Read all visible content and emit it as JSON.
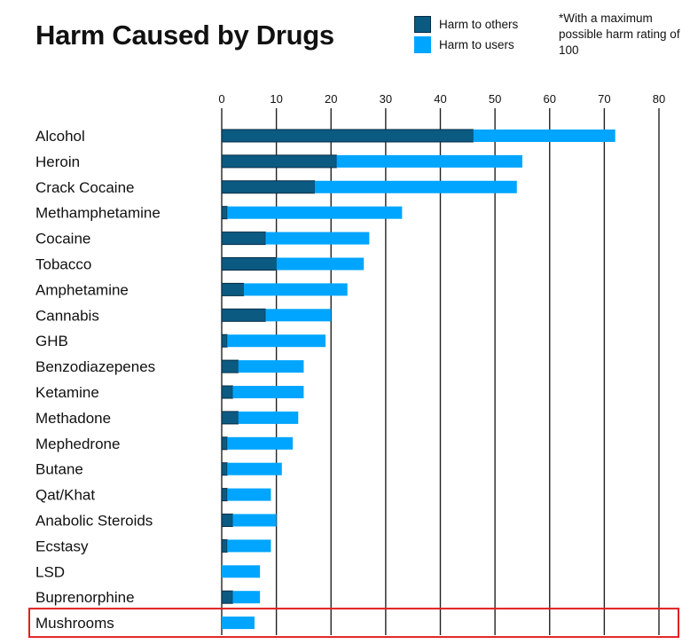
{
  "chart_data": {
    "type": "bar",
    "orientation": "horizontal",
    "stacked": true,
    "title": "Harm Caused by Drugs",
    "note": "*With a maximum possible harm rating of 100",
    "xlim": [
      0,
      80
    ],
    "xticks": [
      0,
      10,
      20,
      30,
      40,
      50,
      60,
      70,
      80
    ],
    "grid": true,
    "legend_placement": "top-right",
    "highlighted_category": "Mushrooms",
    "highlight_color": "#e02020",
    "categories": [
      "Alcohol",
      "Heroin",
      "Crack Cocaine",
      "Methamphetamine",
      "Cocaine",
      "Tobacco",
      "Amphetamine",
      "Cannabis",
      "GHB",
      "Benzodiazepenes",
      "Ketamine",
      "Methadone",
      "Mephedrone",
      "Butane",
      "Qat/Khat",
      "Anabolic Steroids",
      "Ecstasy",
      "LSD",
      "Buprenorphine",
      "Mushrooms"
    ],
    "series": [
      {
        "name": "Harm to others",
        "color": "#0b5a82",
        "values": [
          46,
          21,
          17,
          1,
          8,
          10,
          4,
          8,
          1,
          3,
          2,
          3,
          1,
          1,
          1,
          2,
          1,
          0,
          2,
          0
        ]
      },
      {
        "name": "Harm to users",
        "color": "#00a5ff",
        "values": [
          26,
          34,
          37,
          32,
          19,
          16,
          19,
          12,
          18,
          12,
          13,
          11,
          12,
          10,
          8,
          8,
          8,
          7,
          5,
          6
        ]
      }
    ]
  }
}
